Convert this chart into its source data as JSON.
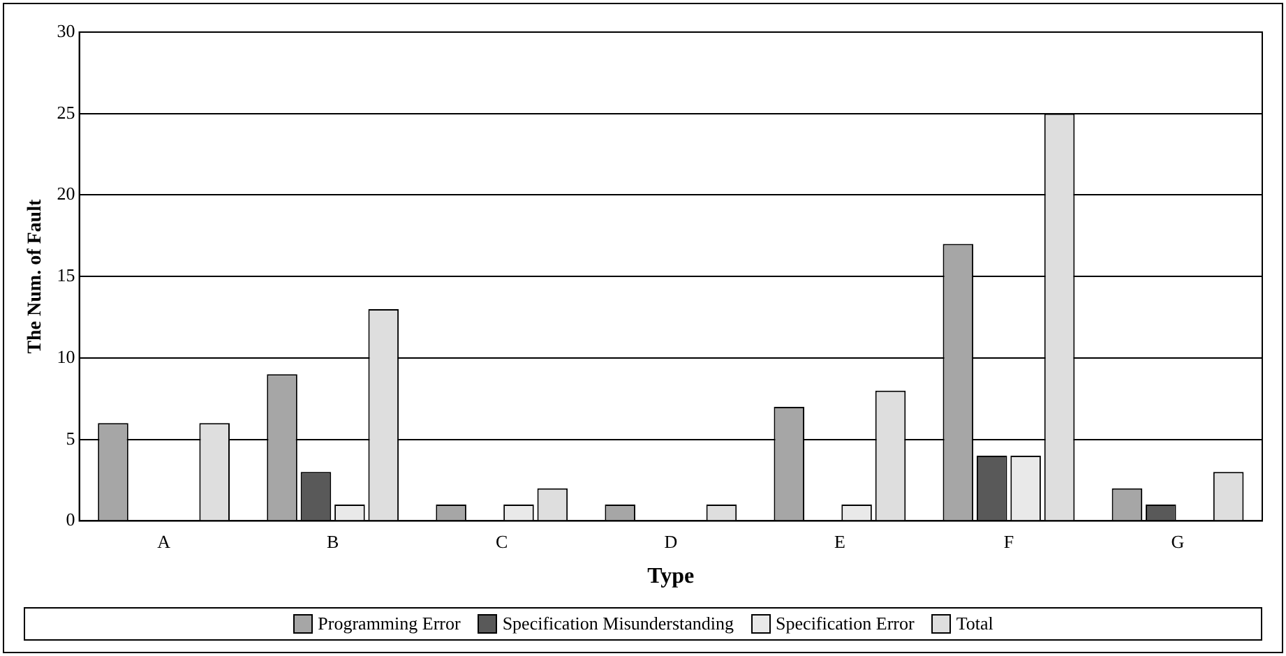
{
  "chart_data": {
    "type": "bar",
    "xlabel": "Type",
    "ylabel": "The Num. of Fault",
    "categories": [
      "A",
      "B",
      "C",
      "D",
      "E",
      "F",
      "G"
    ],
    "series": [
      {
        "name": "Programming Error",
        "color": "#a6a6a6",
        "values": [
          6,
          9,
          1,
          1,
          7,
          17,
          2
        ]
      },
      {
        "name": "Specification Misunderstanding",
        "color": "#595959",
        "values": [
          0,
          3,
          0,
          0,
          0,
          4,
          1
        ]
      },
      {
        "name": "Specification Error",
        "color": "#e9e9e9",
        "values": [
          0,
          1,
          1,
          0,
          1,
          4,
          0
        ]
      },
      {
        "name": "Total",
        "color": "#dedede",
        "values": [
          6,
          13,
          2,
          1,
          8,
          25,
          3
        ]
      }
    ],
    "ylim": [
      0,
      30
    ],
    "yticks": [
      0,
      5,
      10,
      15,
      20,
      25,
      30
    ],
    "grid": "y",
    "legend": "bottom"
  }
}
